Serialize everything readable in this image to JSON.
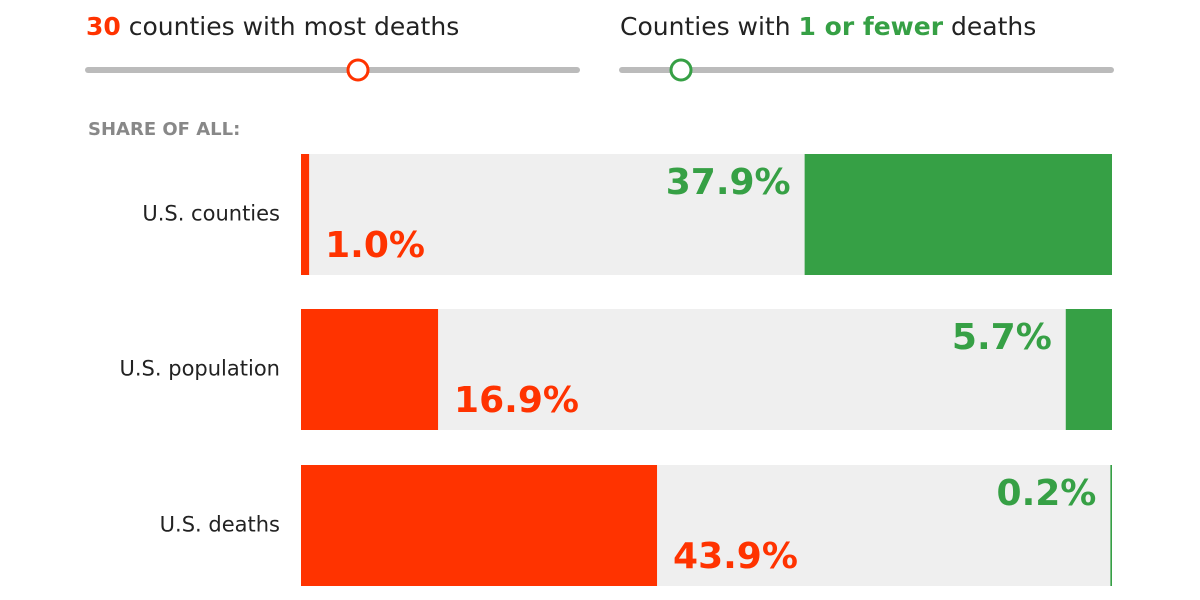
{
  "controls": [
    {
      "highlight": "30",
      "after": "counties with most deaths",
      "color": "#ff3300"
    },
    {
      "before": "Counties with",
      "highlight": "1 or fewer",
      "after": "deaths",
      "color": "#36a045"
    }
  ],
  "chart_data": {
    "type": "bar",
    "subtitle": "SHARE OF ALL:",
    "categories": [
      "U.S. counties",
      "U.S. population",
      "U.S. deaths"
    ],
    "xlim": [
      0,
      100
    ],
    "series": [
      {
        "color": "#ff3300",
        "values": [
          1.0,
          16.9,
          43.9
        ],
        "value_labels": [
          "1.0%",
          "16.9%",
          "43.9%"
        ]
      },
      {
        "color": "#36a045",
        "values": [
          37.9,
          5.7,
          0.2
        ],
        "value_labels": [
          "37.9%",
          "5.7%",
          "0.2%"
        ]
      }
    ]
  }
}
